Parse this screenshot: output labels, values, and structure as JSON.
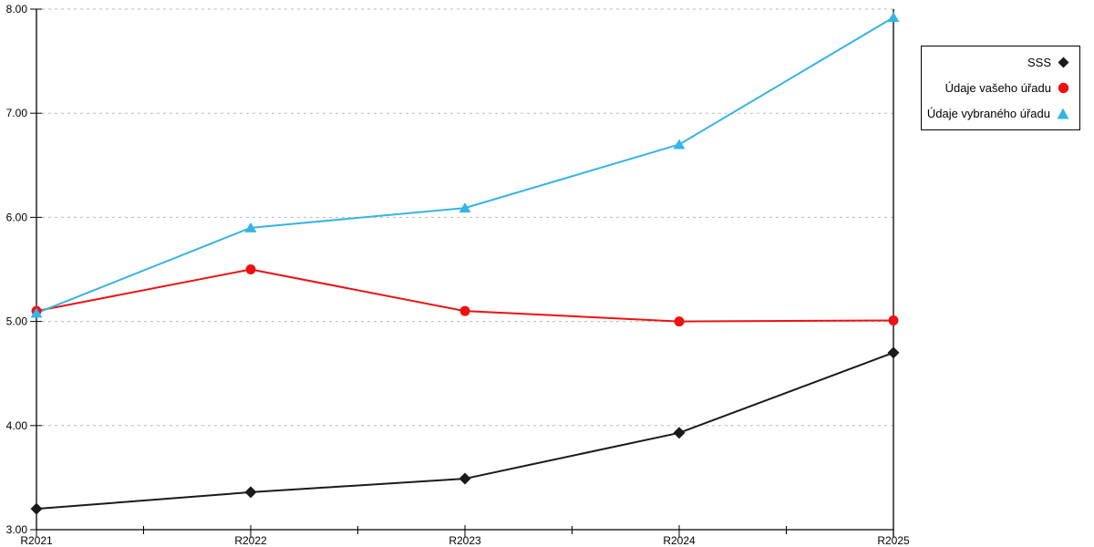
{
  "page": {
    "background_color": "#ffffff"
  },
  "chart_data": {
    "type": "line",
    "title": "",
    "xlabel": "",
    "ylabel": "",
    "categories": [
      "R2021",
      "R2022",
      "R2023",
      "R2024",
      "R2025"
    ],
    "series": [
      {
        "name": "SSS",
        "marker": "diamond",
        "color": "#1a1a1a",
        "values": [
          3.2,
          3.36,
          3.49,
          3.93,
          4.7
        ]
      },
      {
        "name": "Údaje vašeho úřadu",
        "marker": "circle",
        "color": "#ee1111",
        "values": [
          5.1,
          5.5,
          5.1,
          5.0,
          5.01
        ]
      },
      {
        "name": "Údaje vybraného úřadu",
        "marker": "triangle",
        "color": "#36b4e5",
        "values": [
          5.08,
          5.9,
          6.09,
          6.7,
          7.92
        ]
      }
    ],
    "ylim": [
      3,
      8
    ],
    "ytick_step": 1.0,
    "ytick_labels": [
      "3.00",
      "4.00",
      "5.00",
      "6.00",
      "7.00",
      "8.00"
    ],
    "grid": "horizontal-dashed",
    "gridline_color": "#b9b9b9",
    "axis_color": "#000000",
    "legend_position": "outside-top-right"
  }
}
